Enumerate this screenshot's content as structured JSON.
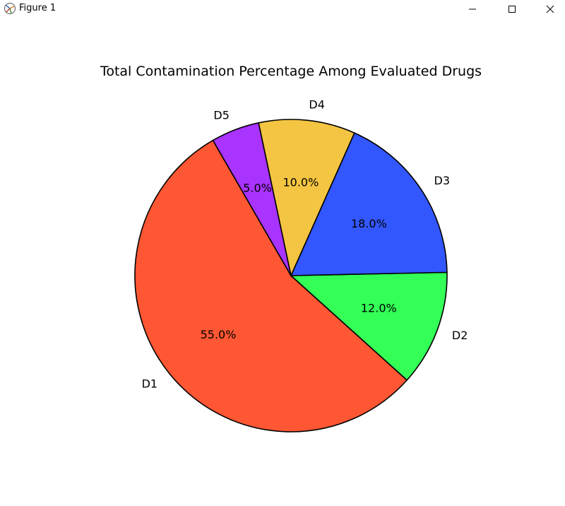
{
  "window": {
    "title": "Figure 1",
    "app_icon": "matplotlib-figure-icon",
    "controls": {
      "minimize_icon": "minimize-icon",
      "maximize_icon": "maximize-icon",
      "close_icon": "close-icon"
    }
  },
  "chart_data": {
    "type": "pie",
    "title": "Total Contamination Percentage Among Evaluated Drugs",
    "categories": [
      "D1",
      "D2",
      "D3",
      "D4",
      "D5"
    ],
    "values": [
      55.0,
      12.0,
      18.0,
      10.0,
      5.0
    ],
    "percent_labels": [
      "55.0%",
      "12.0%",
      "18.0%",
      "10.0%",
      "5.0%"
    ],
    "colors": [
      "#ff5733",
      "#33ff57",
      "#3357ff",
      "#f4c542",
      "#a933ff"
    ],
    "edge_color": "#000000",
    "start_angle_deg": 120,
    "direction": "counterclockwise",
    "legend": "none"
  }
}
